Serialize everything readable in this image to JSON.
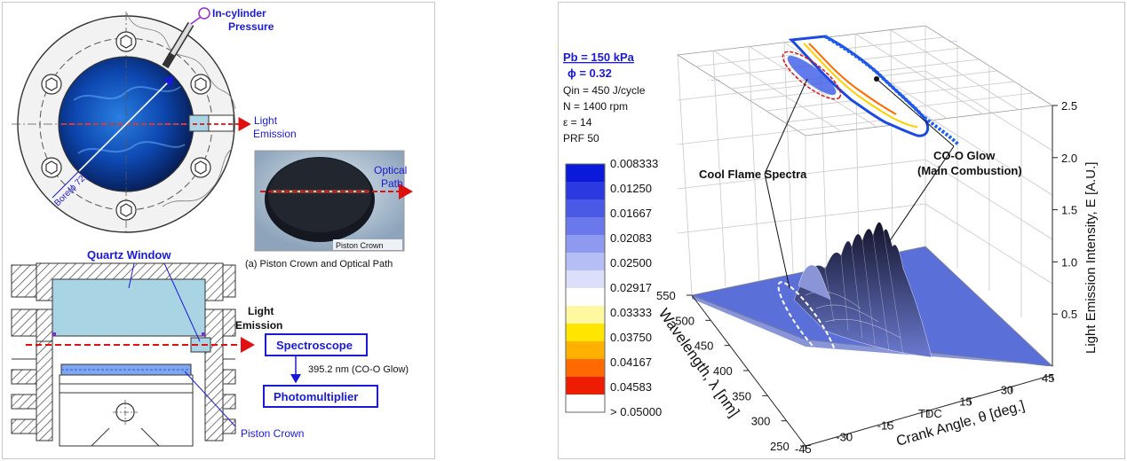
{
  "left": {
    "in_cylinder_pressure": [
      "In-cylinder",
      "Pressure"
    ],
    "light_emission_top": [
      "Light",
      "Emission"
    ],
    "bore_label": "Bore(ϕ 72)",
    "optical_path": [
      "Optical",
      "Path"
    ],
    "piston_crown_photo_label": "Piston Crown",
    "photo_caption": "(a) Piston Crown and Optical Path",
    "quartz_window": "Quartz Window",
    "light_emission_bottom": [
      "Light",
      "Emission"
    ],
    "spectroscope": "Spectroscope",
    "wavelength_note": "395.2 nm (CO-O Glow)",
    "photomultiplier": "Photomultiplier",
    "piston_crown": "Piston Crown"
  },
  "right": {
    "conditions": {
      "pb": "Pb = 150 kPa",
      "phi": "ϕ = 0.32",
      "qin": "Qin = 450 J/cycle",
      "n": "N = 1400 rpm",
      "eps": "ε = 14",
      "prf": "PRF 50"
    },
    "colors": [
      "#0a1ad8",
      "#2a3ae0",
      "#4a5ae6",
      "#6a78ec",
      "#8e9af0",
      "#b6bef6",
      "#dcdffa",
      "#ffffff",
      "#fff8a0",
      "#ffe600",
      "#ffb000",
      "#ff6a00",
      "#ee1c00",
      "#ffffff"
    ],
    "legend_values": [
      "0.008333",
      "0.01250",
      "0.01667",
      "0.02083",
      "0.02500",
      "0.02917",
      "0.03333",
      "0.03750",
      "0.04167",
      "0.04583",
      "> 0.05000"
    ],
    "annotations": {
      "cool_flame": "Cool Flame Spectra",
      "co_o_glow": [
        "CO-O Glow",
        "(Main Combustion)"
      ]
    },
    "axes": {
      "wavelength_label": "Wavelength, λ [nm]",
      "wavelength_ticks": [
        "250",
        "300",
        "350",
        "400",
        "450",
        "500",
        "550"
      ],
      "crank_label": "Crank Angle, θ [deg.]",
      "crank_ticks": [
        "-45",
        "-30",
        "-15",
        "TDC",
        "15",
        "30",
        "45"
      ],
      "intensity_label": "Light Emission Intensity, E [A.U.]",
      "intensity_ticks": [
        "0.5",
        "1.0",
        "1.5",
        "2.0",
        "2.5"
      ]
    }
  }
}
